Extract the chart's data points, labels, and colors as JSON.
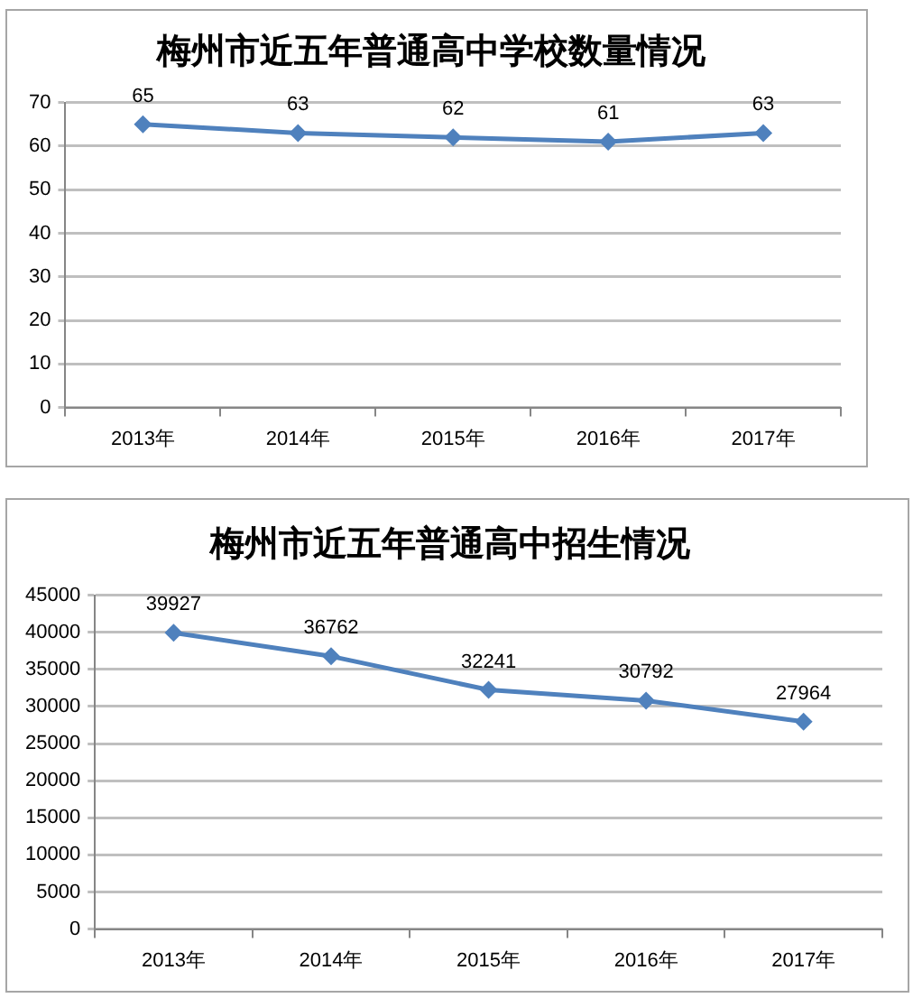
{
  "chart_data": [
    {
      "type": "line",
      "title": "梅州市近五年普通高中学校数量情况",
      "categories": [
        "2013年",
        "2014年",
        "2015年",
        "2016年",
        "2017年"
      ],
      "values": [
        65,
        63,
        62,
        61,
        63
      ],
      "color": "#4f81bd",
      "ylim": [
        0,
        70
      ],
      "yticks": [
        0,
        10,
        20,
        30,
        40,
        50,
        60,
        70
      ],
      "grid": "y",
      "marker": "diamond",
      "line_style": "solid",
      "data_labels": true
    },
    {
      "type": "line",
      "title": "梅州市近五年普通高中招生情况",
      "categories": [
        "2013年",
        "2014年",
        "2015年",
        "2016年",
        "2017年"
      ],
      "values": [
        39927,
        36762,
        32241,
        30792,
        27964
      ],
      "color": "#4f81bd",
      "ylim": [
        0,
        45000
      ],
      "yticks": [
        0,
        5000,
        10000,
        15000,
        20000,
        25000,
        30000,
        35000,
        40000,
        45000
      ],
      "grid": "y",
      "marker": "diamond",
      "line_style": "solid",
      "data_labels": true
    }
  ]
}
